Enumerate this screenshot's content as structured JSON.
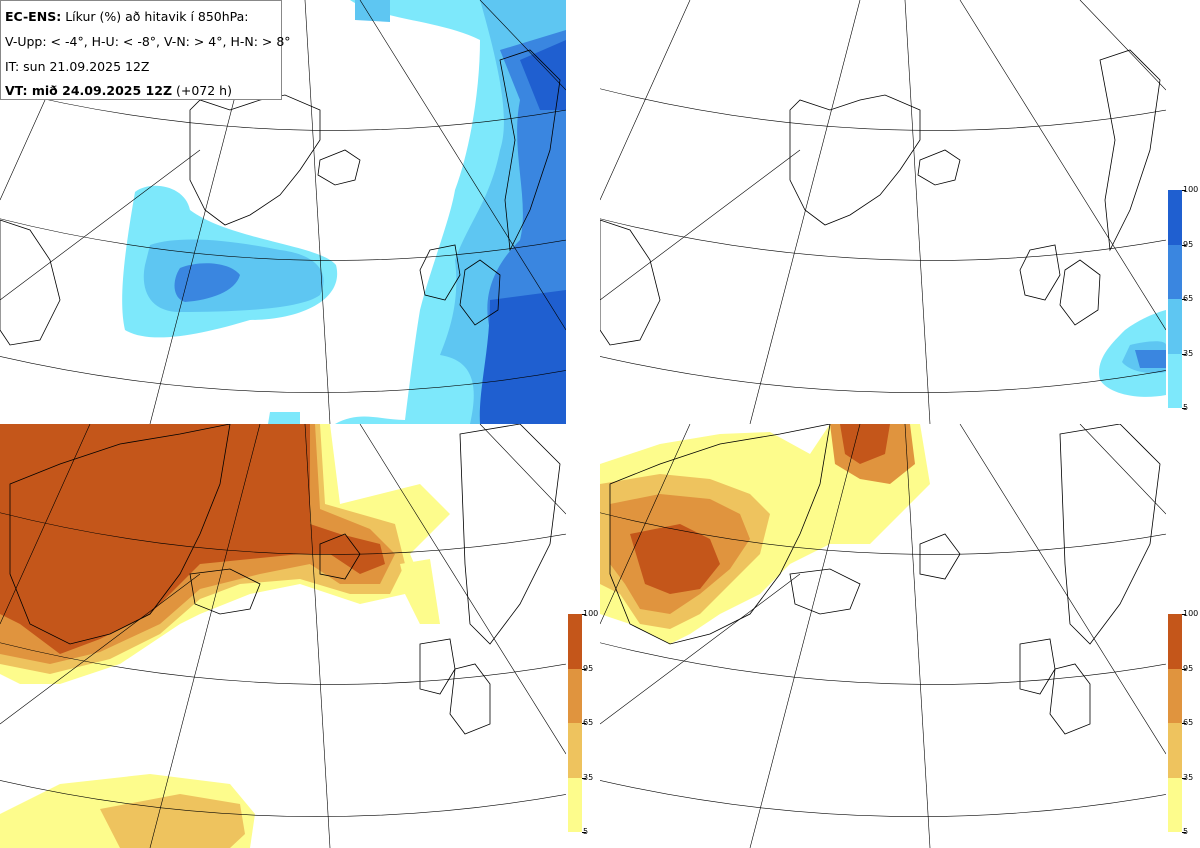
{
  "header": {
    "model": "EC-ENS:",
    "title": "Líkur (%) að hitavik í 850hPa:",
    "categories": "V-Upp: < -4°, H-U: < -8°, V-N: > 4°, H-N: > 8°",
    "initial_time": "IT: sun 21.09.2025 12Z",
    "valid_label": "VT: mið 24.09.2025 12Z",
    "valid_offset": "(+072 h)"
  },
  "colorbar_cold": {
    "labels": [
      "100",
      "95",
      "65",
      "35",
      "5"
    ],
    "colors": [
      "#1f5fd0",
      "#3a86e0",
      "#5ec6f2",
      "#7de8fb"
    ]
  },
  "colorbar_warm": {
    "labels": [
      "100",
      "95",
      "65",
      "35",
      "5"
    ],
    "colors": [
      "#c4561a",
      "#e0943e",
      "#eec35e",
      "#fdfc8c"
    ]
  },
  "panels": [
    {
      "name": "V-Upp",
      "scheme": "cold",
      "valid": "mið 24.09.2025 12Z"
    },
    {
      "name": "H-U",
      "scheme": "cold",
      "valid": "mið 24.09.2025 12Z"
    },
    {
      "name": "V-N",
      "scheme": "warm",
      "valid": "mið 24.09.2025 12Z"
    },
    {
      "name": "H-N",
      "scheme": "warm",
      "valid": "mið 24.09.2025 12Z"
    }
  ]
}
